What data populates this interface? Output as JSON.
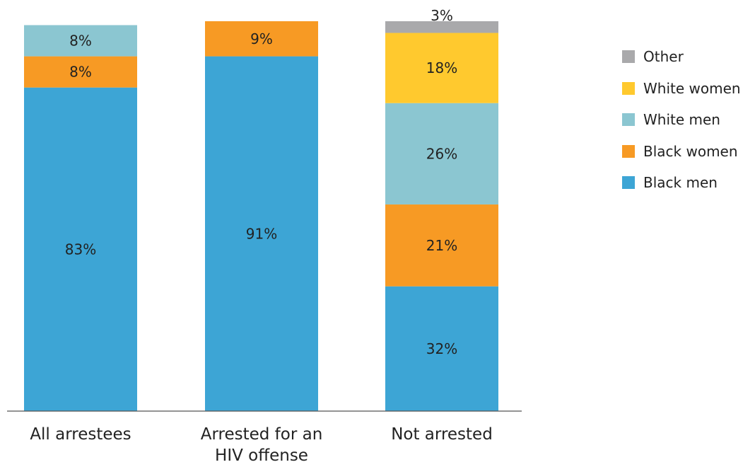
{
  "chart_data": {
    "type": "bar",
    "stacked": true,
    "categories": [
      [
        "All arrestees"
      ],
      [
        "Arrested for an",
        "HIV offense"
      ],
      [
        "Not arrested"
      ]
    ],
    "series": [
      {
        "name": "Black men",
        "color": "#3da5d5",
        "values": [
          83,
          91,
          32
        ],
        "labels": [
          "83%",
          "91%",
          "32%"
        ]
      },
      {
        "name": "Black women",
        "color": "#f79a24",
        "values": [
          8,
          9,
          21
        ],
        "labels": [
          "8%",
          "9%",
          "21%"
        ]
      },
      {
        "name": "White men",
        "color": "#8bc6d1",
        "values": [
          8,
          0,
          26
        ],
        "labels": [
          "8%",
          "",
          "26%"
        ]
      },
      {
        "name": "White women",
        "color": "#ffc92e",
        "values": [
          0,
          0,
          18
        ],
        "labels": [
          "",
          "",
          "18%"
        ]
      },
      {
        "name": "Other",
        "color": "#a9a9ab",
        "values": [
          0,
          0,
          3
        ],
        "labels": [
          "",
          "",
          "3%"
        ]
      }
    ],
    "ylim": [
      0,
      100
    ],
    "grid": false,
    "legend_position": "right"
  }
}
